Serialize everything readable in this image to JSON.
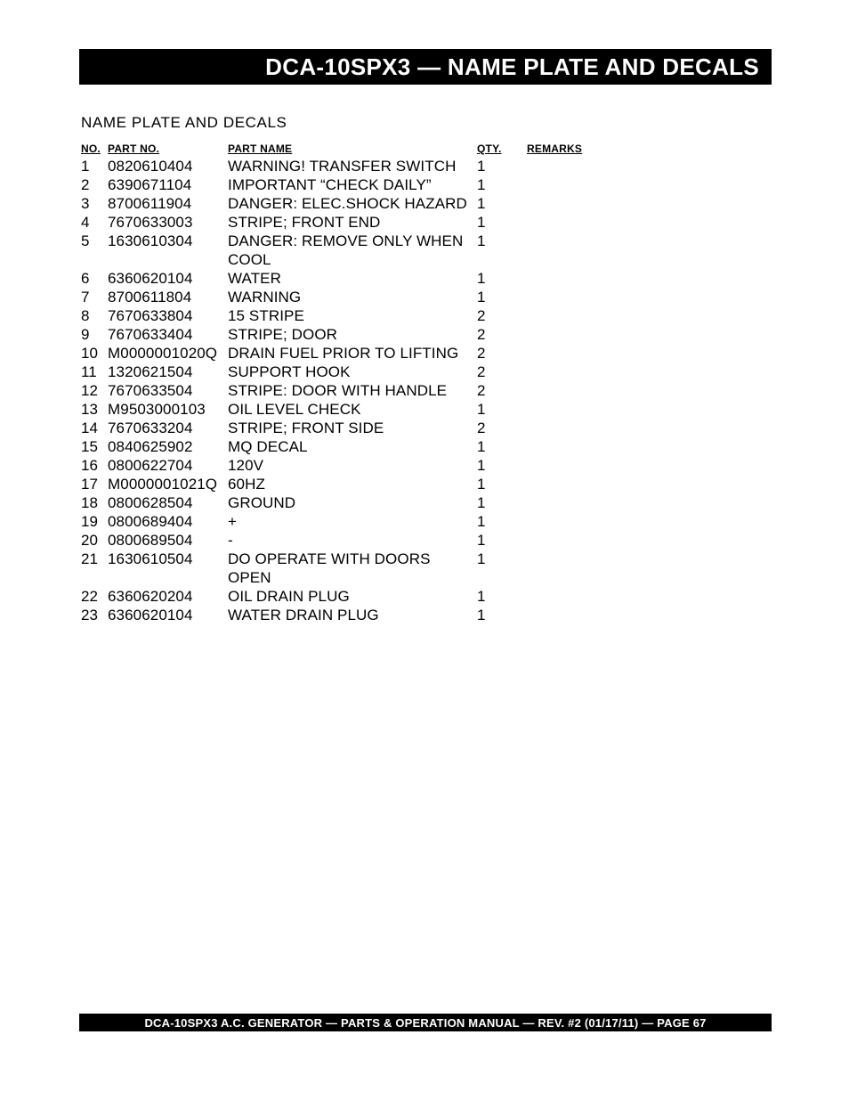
{
  "header": {
    "title": "DCA-10SPX3   — NAME PLATE AND DECALS"
  },
  "section": {
    "title": "NAME PLATE  AND DECALS"
  },
  "table": {
    "columns": {
      "no": "NO.",
      "part_no": "PART NO.",
      "part_name": "PART NAME",
      "qty": "QTY.",
      "remarks": "REMARKS"
    },
    "rows": [
      {
        "no": "1",
        "part_no": "0820610404",
        "part_name": "WARNING! TRANSFER SWITCH",
        "qty": "1",
        "remarks": ""
      },
      {
        "no": "2",
        "part_no": "6390671104",
        "part_name": "IMPORTANT “CHECK DAILY”",
        "qty": "1",
        "remarks": ""
      },
      {
        "no": "3",
        "part_no": "8700611904",
        "part_name": "DANGER: ELEC.SHOCK HAZARD",
        "qty": "1",
        "remarks": ""
      },
      {
        "no": "4",
        "part_no": "7670633003",
        "part_name": "STRIPE; FRONT END",
        "qty": "1",
        "remarks": ""
      },
      {
        "no": "5",
        "part_no": "1630610304",
        "part_name": "DANGER: REMOVE ONLY WHEN COOL",
        "qty": "1",
        "remarks": ""
      },
      {
        "no": "6",
        "part_no": "6360620104",
        "part_name": "WATER",
        "qty": "1",
        "remarks": ""
      },
      {
        "no": "7",
        "part_no": "8700611804",
        "part_name": "WARNING",
        "qty": "1",
        "remarks": ""
      },
      {
        "no": "8",
        "part_no": "7670633804",
        "part_name": "15 STRIPE",
        "qty": "2",
        "remarks": ""
      },
      {
        "no": "9",
        "part_no": "7670633404",
        "part_name": "STRIPE; DOOR",
        "qty": "2",
        "remarks": ""
      },
      {
        "no": "10",
        "part_no": "M0000001020Q",
        "part_name": "DRAIN FUEL PRIOR TO LIFTING",
        "qty": "2",
        "remarks": ""
      },
      {
        "no": "11",
        "part_no": "1320621504",
        "part_name": "SUPPORT HOOK",
        "qty": "2",
        "remarks": ""
      },
      {
        "no": "12",
        "part_no": "7670633504",
        "part_name": "STRIPE: DOOR WITH HANDLE",
        "qty": "2",
        "remarks": ""
      },
      {
        "no": "13",
        "part_no": "M9503000103",
        "part_name": "OIL LEVEL CHECK",
        "qty": "1",
        "remarks": ""
      },
      {
        "no": "14",
        "part_no": "7670633204",
        "part_name": "STRIPE; FRONT SIDE",
        "qty": "2",
        "remarks": ""
      },
      {
        "no": "15",
        "part_no": "0840625902",
        "part_name": "MQ DECAL",
        "qty": "1",
        "remarks": ""
      },
      {
        "no": "16",
        "part_no": "0800622704",
        "part_name": "120V",
        "qty": "1",
        "remarks": ""
      },
      {
        "no": "17",
        "part_no": "M0000001021Q",
        "part_name": "60HZ",
        "qty": "1",
        "remarks": ""
      },
      {
        "no": "18",
        "part_no": "0800628504",
        "part_name": "GROUND",
        "qty": "1",
        "remarks": ""
      },
      {
        "no": "19",
        "part_no": "0800689404",
        "part_name": "+",
        "qty": "1",
        "remarks": ""
      },
      {
        "no": "20",
        "part_no": "0800689504",
        "part_name": "-",
        "qty": "1",
        "remarks": ""
      },
      {
        "no": "21",
        "part_no": "1630610504",
        "part_name": "DO OPERATE WITH DOORS OPEN",
        "qty": "1",
        "remarks": ""
      },
      {
        "no": "22",
        "part_no": "6360620204",
        "part_name": "OIL DRAIN PLUG",
        "qty": "1",
        "remarks": ""
      },
      {
        "no": "23",
        "part_no": "6360620104",
        "part_name": "WATER DRAIN PLUG",
        "qty": "1",
        "remarks": ""
      }
    ]
  },
  "footer": {
    "text": "DCA-10SPX3   A.C. GENERATOR — PARTS & OPERATION MANUAL — REV. #2  (01/17/11) — PAGE 67"
  },
  "colors": {
    "page_bg": "#ffffff",
    "bar_bg": "#000000",
    "bar_text": "#ffffff",
    "body_text": "#000000"
  }
}
